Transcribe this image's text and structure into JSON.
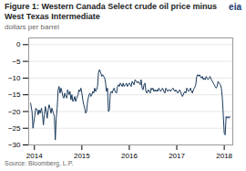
{
  "chart_data": {
    "type": "line",
    "title": "Figure 1: Western Canada Select crude oil price minus West Texas Intermediate",
    "subtitle": "dollars per barrel",
    "source": "Source: Bloomberg, L.P.",
    "annotations": [
      "eia"
    ],
    "color": "#1a3a5c",
    "xlim": [
      2013.88,
      2018.18
    ],
    "xticks": [
      2014,
      2015,
      2016,
      2017,
      2018
    ],
    "ylim": [
      -30,
      2
    ],
    "yticks": [
      0,
      -5,
      -10,
      -15,
      -20,
      -25,
      -30
    ],
    "grid": "y",
    "x": [
      2013.92,
      2013.95,
      2013.97,
      2014.0,
      2014.03,
      2014.06,
      2014.08,
      2014.1,
      2014.12,
      2014.15,
      2014.17,
      2014.19,
      2014.21,
      2014.23,
      2014.25,
      2014.27,
      2014.29,
      2014.31,
      2014.33,
      2014.35,
      2014.37,
      2014.4,
      2014.42,
      2014.44,
      2014.46,
      2014.48,
      2014.5,
      2014.52,
      2014.54,
      2014.56,
      2014.58,
      2014.6,
      2014.62,
      2014.64,
      2014.66,
      2014.68,
      2014.7,
      2014.73,
      2014.75,
      2014.77,
      2014.79,
      2014.81,
      2014.83,
      2014.85,
      2014.87,
      2014.89,
      2014.92,
      2014.94,
      2014.96,
      2014.98,
      2015.0,
      2015.02,
      2015.04,
      2015.06,
      2015.08,
      2015.1,
      2015.12,
      2015.15,
      2015.17,
      2015.19,
      2015.21,
      2015.23,
      2015.25,
      2015.27,
      2015.29,
      2015.31,
      2015.33,
      2015.35,
      2015.37,
      2015.4,
      2015.42,
      2015.44,
      2015.46,
      2015.48,
      2015.5,
      2015.52,
      2015.54,
      2015.56,
      2015.58,
      2015.6,
      2015.62,
      2015.64,
      2015.66,
      2015.68,
      2015.7,
      2015.73,
      2015.75,
      2015.77,
      2015.79,
      2015.81,
      2015.83,
      2015.85,
      2015.87,
      2015.89,
      2015.92,
      2015.94,
      2015.96,
      2015.98,
      2016.0,
      2016.02,
      2016.04,
      2016.06,
      2016.08,
      2016.1,
      2016.12,
      2016.15,
      2016.17,
      2016.19,
      2016.21,
      2016.23,
      2016.25,
      2016.27,
      2016.29,
      2016.31,
      2016.33,
      2016.35,
      2016.37,
      2016.4,
      2016.42,
      2016.44,
      2016.46,
      2016.48,
      2016.5,
      2016.52,
      2016.54,
      2016.56,
      2016.58,
      2016.6,
      2016.62,
      2016.64,
      2016.66,
      2016.68,
      2016.7,
      2016.73,
      2016.75,
      2016.77,
      2016.79,
      2016.81,
      2016.83,
      2016.85,
      2016.87,
      2016.89,
      2016.92,
      2016.94,
      2016.96,
      2016.98,
      2017.0,
      2017.02,
      2017.04,
      2017.06,
      2017.08,
      2017.1,
      2017.12,
      2017.15,
      2017.17,
      2017.19,
      2017.21,
      2017.23,
      2017.25,
      2017.27,
      2017.29,
      2017.31,
      2017.33,
      2017.35,
      2017.37,
      2017.4,
      2017.42,
      2017.44,
      2017.46,
      2017.48,
      2017.5,
      2017.52,
      2017.54,
      2017.56,
      2017.58,
      2017.6,
      2017.62,
      2017.64,
      2017.66,
      2017.68,
      2017.7,
      2017.73,
      2017.75,
      2017.77,
      2017.79,
      2017.81,
      2017.83,
      2017.85,
      2017.87,
      2017.89,
      2017.92,
      2017.94,
      2017.96,
      2017.98,
      2018.0,
      2018.02,
      2018.04,
      2018.06,
      2018.08,
      2018.1,
      2018.12
    ],
    "values": [
      -17.5,
      -20.0,
      -25.0,
      -22.0,
      -19.0,
      -19.5,
      -21.0,
      -19.5,
      -20.5,
      -19.0,
      -21.0,
      -24.0,
      -21.0,
      -18.5,
      -20.0,
      -22.0,
      -19.5,
      -18.0,
      -19.0,
      -20.5,
      -19.0,
      -20.5,
      -21.5,
      -28.5,
      -22.0,
      -19.0,
      -13.5,
      -12.5,
      -14.5,
      -13.0,
      -14.0,
      -15.5,
      -16.0,
      -14.5,
      -15.5,
      -16.0,
      -13.5,
      -15.0,
      -14.0,
      -16.5,
      -15.0,
      -17.0,
      -16.5,
      -15.5,
      -17.0,
      -16.0,
      -15.0,
      -13.5,
      -14.0,
      -13.0,
      -14.5,
      -16.5,
      -18.0,
      -19.0,
      -20.5,
      -20.0,
      -17.0,
      -15.0,
      -14.5,
      -15.5,
      -15.0,
      -14.0,
      -14.5,
      -13.0,
      -14.0,
      -13.5,
      -12.5,
      -8.5,
      -7.5,
      -8.5,
      -9.5,
      -9.0,
      -9.5,
      -10.0,
      -11.5,
      -14.0,
      -13.0,
      -20.0,
      -19.5,
      -14.5,
      -14.0,
      -14.5,
      -13.5,
      -13.0,
      -14.0,
      -14.5,
      -12.5,
      -12.0,
      -12.5,
      -11.5,
      -12.0,
      -12.5,
      -11.5,
      -12.5,
      -12.0,
      -11.5,
      -12.5,
      -12.0,
      -11.5,
      -12.0,
      -12.5,
      -11.0,
      -11.5,
      -12.0,
      -10.5,
      -11.0,
      -11.5,
      -11.0,
      -11.5,
      -12.0,
      -10.5,
      -13.0,
      -13.5,
      -12.0,
      -11.5,
      -14.0,
      -14.5,
      -13.5,
      -14.0,
      -14.5,
      -13.0,
      -13.5,
      -13.0,
      -14.0,
      -13.5,
      -14.0,
      -13.5,
      -14.0,
      -13.0,
      -13.5,
      -14.0,
      -13.5,
      -13.0,
      -14.0,
      -14.5,
      -13.0,
      -13.5,
      -14.0,
      -13.5,
      -13.5,
      -14.0,
      -13.5,
      -13.0,
      -13.5,
      -14.0,
      -13.5,
      -14.0,
      -14.5,
      -14.0,
      -13.5,
      -14.0,
      -15.0,
      -15.5,
      -14.5,
      -14.0,
      -14.5,
      -13.0,
      -13.5,
      -14.0,
      -13.5,
      -13.0,
      -14.0,
      -14.5,
      -13.5,
      -13.0,
      -12.0,
      -9.5,
      -9.0,
      -9.5,
      -9.0,
      -9.5,
      -10.0,
      -9.5,
      -10.5,
      -10.0,
      -10.5,
      -9.5,
      -10.0,
      -10.5,
      -10.0,
      -9.5,
      -10.5,
      -11.0,
      -11.5,
      -12.0,
      -12.5,
      -13.0,
      -12.5,
      -11.0,
      -11.5,
      -12.0,
      -13.0,
      -16.0,
      -21.0,
      -26.5,
      -27.0,
      -21.5,
      -22.0,
      -21.5,
      -22.0,
      -21.5
    ]
  }
}
